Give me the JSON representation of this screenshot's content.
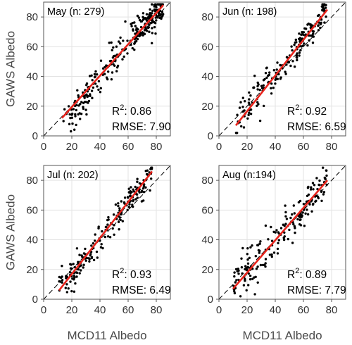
{
  "figure": {
    "xlabel": "MCD11 Albedo",
    "ylabel": "GAWS Albedo",
    "colors": {
      "points": "#000000",
      "fit_line": "#e8231b",
      "reference_line": "#000000",
      "grid": "#e3e3e3",
      "axis": "#555555"
    }
  },
  "chart_data": [
    {
      "type": "scatter",
      "title": "May (n: 279)",
      "r2_label": "R",
      "r2_value": ": 0.86",
      "rmse_text": "RMSE: 7.90",
      "xlim": [
        0,
        90
      ],
      "ylim": [
        0,
        90
      ],
      "xticks": [
        "0",
        "20",
        "40",
        "60",
        "80"
      ],
      "yticks": [
        "0",
        "20",
        "40",
        "60",
        "80"
      ],
      "grid": true,
      "reference_line": "1:1 dashed",
      "fit_line": {
        "x": [
          13,
          85
        ],
        "y": [
          12,
          88
        ]
      },
      "points": {
        "seed": 11,
        "clusters": [
          {
            "n": 150,
            "x": [
              63,
              85
            ],
            "spread": 4.5
          },
          {
            "n": 45,
            "x": [
              43,
              63
            ],
            "spread": 6
          },
          {
            "n": 30,
            "x": [
              28,
              43
            ],
            "spread": 7
          },
          {
            "n": 12,
            "x": [
              13,
              25
            ],
            "spread": 4
          },
          {
            "n": 42,
            "x": [
              18,
              33
            ],
            "spread": 4.5,
            "lift": 6
          }
        ]
      }
    },
    {
      "type": "scatter",
      "title": "Jun (n: 198)",
      "r2_label": "R",
      "r2_value": ": 0.92",
      "rmse_text": "RMSE: 6.59",
      "xlim": [
        0,
        90
      ],
      "ylim": [
        0,
        90
      ],
      "xticks": [
        "0",
        "20",
        "40",
        "60",
        "80"
      ],
      "yticks": [
        "0",
        "20",
        "40",
        "60",
        "80"
      ],
      "grid": true,
      "reference_line": "1:1 dashed",
      "fit_line": {
        "x": [
          12,
          77
        ],
        "y": [
          7,
          85
        ]
      },
      "points": {
        "seed": 23,
        "clusters": [
          {
            "n": 95,
            "x": [
              55,
              77
            ],
            "spread": 4.5
          },
          {
            "n": 45,
            "x": [
              35,
              55
            ],
            "spread": 5
          },
          {
            "n": 58,
            "x": [
              12,
              35
            ],
            "spread": 6
          }
        ]
      }
    },
    {
      "type": "scatter",
      "title": "Jul (n: 202)",
      "r2_label": "R",
      "r2_value": ": 0.93",
      "rmse_text": "RMSE: 6.49",
      "xlim": [
        0,
        90
      ],
      "ylim": [
        0,
        90
      ],
      "xticks": [
        "0",
        "20",
        "40",
        "60",
        "80"
      ],
      "yticks": [
        "0",
        "20",
        "40",
        "60",
        "80"
      ],
      "grid": true,
      "reference_line": "1:1 dashed",
      "fit_line": {
        "x": [
          11,
          77
        ],
        "y": [
          6,
          86
        ]
      },
      "points": {
        "seed": 37,
        "clusters": [
          {
            "n": 80,
            "x": [
              55,
              77
            ],
            "spread": 4.5
          },
          {
            "n": 60,
            "x": [
              30,
              55
            ],
            "spread": 5
          },
          {
            "n": 62,
            "x": [
              11,
              30
            ],
            "spread": 5
          }
        ]
      }
    },
    {
      "type": "scatter",
      "title": "Aug (n:194)",
      "r2_label": "R",
      "r2_value": ": 0.89",
      "rmse_text": "RMSE: 7.79",
      "xlim": [
        0,
        90
      ],
      "ylim": [
        0,
        90
      ],
      "xticks": [
        "0",
        "20",
        "40",
        "60",
        "80"
      ],
      "yticks": [
        "0",
        "20",
        "40",
        "60",
        "80"
      ],
      "grid": true,
      "reference_line": "1:1 dashed",
      "fit_line": {
        "x": [
          10,
          77
        ],
        "y": [
          7,
          80
        ]
      },
      "points": {
        "seed": 51,
        "clusters": [
          {
            "n": 75,
            "x": [
              55,
              77
            ],
            "spread": 5
          },
          {
            "n": 50,
            "x": [
              33,
              55
            ],
            "spread": 6.5
          },
          {
            "n": 69,
            "x": [
              10,
              33
            ],
            "spread": 8
          }
        ]
      }
    }
  ]
}
